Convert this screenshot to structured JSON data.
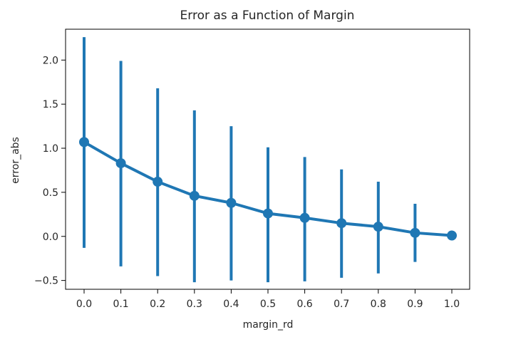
{
  "chart_data": {
    "type": "line",
    "title": "Error as a Function of Margin",
    "xlabel": "margin_rd",
    "ylabel": "error_abs",
    "categories": [
      "0.0",
      "0.1",
      "0.2",
      "0.3",
      "0.4",
      "0.5",
      "0.6",
      "0.7",
      "0.8",
      "0.9",
      "1.0"
    ],
    "series": [
      {
        "values": [
          1.07,
          0.83,
          0.62,
          0.46,
          0.38,
          0.26,
          0.21,
          0.15,
          0.11,
          0.04,
          0.01
        ],
        "error_low": [
          -0.13,
          -0.34,
          -0.45,
          -0.52,
          -0.5,
          -0.52,
          -0.51,
          -0.47,
          -0.42,
          -0.29,
          0.0
        ],
        "error_high": [
          2.26,
          1.99,
          1.68,
          1.43,
          1.25,
          1.01,
          0.9,
          0.76,
          0.62,
          0.37,
          0.01
        ],
        "color": "#1f77b4"
      }
    ],
    "ylim": [
      -0.6,
      2.35
    ],
    "yticks": [
      "−0.5",
      "0.0",
      "0.5",
      "1.0",
      "1.5",
      "2.0"
    ],
    "ytick_values": [
      -0.5,
      0,
      0.5,
      1,
      1.5,
      2
    ],
    "grid": false,
    "legend": "none"
  }
}
